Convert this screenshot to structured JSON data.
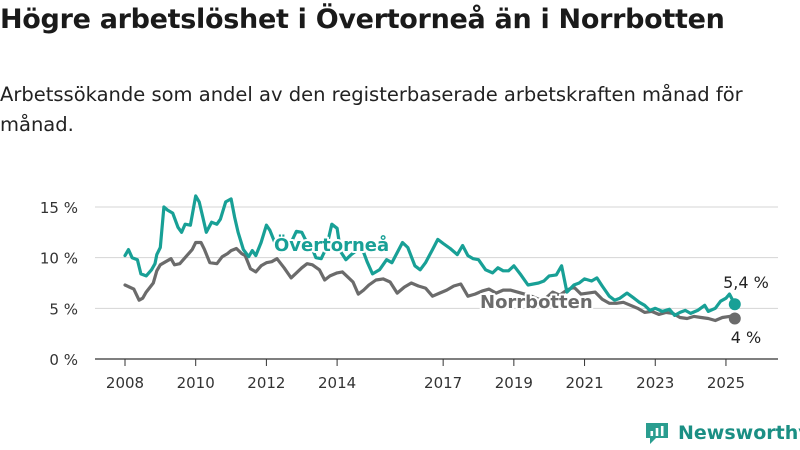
{
  "header": {
    "title": "Högre arbetslöshet i Övertorneå än i Norrbotten",
    "subtitle": "Arbetssökande som andel av den registerbaserade arbetskraften månad för månad."
  },
  "brand": {
    "name": "Newsworthy",
    "icon": "bar-chart-logo-icon",
    "color": "#1b8f84"
  },
  "chart_data": {
    "type": "line",
    "y_ticks": [
      "0 %",
      "5 %",
      "10 %",
      "15 %"
    ],
    "y_tick_values": [
      0,
      5,
      10,
      15
    ],
    "x_ticks": [
      "2008",
      "2010",
      "2012",
      "2014",
      "2017",
      "2019",
      "2021",
      "2023",
      "2025"
    ],
    "x_tick_values": [
      2008,
      2010,
      2012,
      2014,
      2017,
      2019,
      2021,
      2023,
      2025
    ],
    "ylim": [
      0,
      16.5
    ],
    "xlim": [
      2007.5,
      2025.8
    ],
    "grid": true,
    "series": [
      {
        "name": "Övertorneå",
        "color": "#18a096",
        "end_label": "5,4 %",
        "x": [
          2008.0,
          2008.1,
          2008.2,
          2008.35,
          2008.45,
          2008.6,
          2008.75,
          2008.85,
          2008.9,
          2009.0,
          2009.1,
          2009.2,
          2009.35,
          2009.5,
          2009.6,
          2009.7,
          2009.85,
          2010.0,
          2010.1,
          2010.2,
          2010.3,
          2010.45,
          2010.6,
          2010.7,
          2010.85,
          2011.0,
          2011.1,
          2011.2,
          2011.35,
          2011.5,
          2011.6,
          2011.7,
          2011.85,
          2012.0,
          2012.1,
          2012.25,
          2012.4,
          2012.55,
          2012.7,
          2012.85,
          2013.0,
          2013.1,
          2013.25,
          2013.4,
          2013.55,
          2013.7,
          2013.85,
          2014.0,
          2014.1,
          2014.25,
          2014.4,
          2014.55,
          2014.7,
          2014.85,
          2015.0,
          2015.2,
          2015.4,
          2015.55,
          2015.7,
          2015.85,
          2016.0,
          2016.2,
          2016.35,
          2016.5,
          2016.7,
          2016.85,
          2017.0,
          2017.2,
          2017.4,
          2017.55,
          2017.7,
          2017.85,
          2018.0,
          2018.2,
          2018.4,
          2018.55,
          2018.7,
          2018.85,
          2019.0,
          2019.2,
          2019.4,
          2019.55,
          2019.7,
          2019.85,
          2020.0,
          2020.2,
          2020.35,
          2020.5,
          2020.7,
          2020.85,
          2021.0,
          2021.2,
          2021.35,
          2021.5,
          2021.7,
          2021.85,
          2022.0,
          2022.2,
          2022.4,
          2022.55,
          2022.7,
          2022.85,
          2023.0,
          2023.2,
          2023.4,
          2023.55,
          2023.7,
          2023.85,
          2024.0,
          2024.2,
          2024.4,
          2024.5,
          2024.7,
          2024.85,
          2025.0,
          2025.1,
          2025.25
        ],
        "values": [
          10.2,
          10.8,
          10.0,
          9.8,
          8.4,
          8.2,
          8.8,
          9.4,
          10.3,
          11.0,
          15.0,
          14.7,
          14.4,
          13.0,
          12.5,
          13.3,
          13.2,
          16.1,
          15.5,
          14.0,
          12.5,
          13.5,
          13.3,
          13.8,
          15.5,
          15.8,
          14.0,
          12.5,
          10.8,
          10.1,
          10.7,
          10.2,
          11.5,
          13.2,
          12.7,
          11.4,
          10.6,
          10.8,
          11.5,
          12.6,
          12.5,
          11.8,
          11.3,
          10.0,
          9.9,
          11.0,
          13.3,
          12.9,
          10.6,
          9.8,
          10.3,
          10.7,
          11.0,
          9.6,
          8.4,
          8.8,
          9.8,
          9.5,
          10.5,
          11.5,
          11.0,
          9.2,
          8.8,
          9.5,
          10.8,
          11.8,
          11.4,
          10.9,
          10.3,
          11.2,
          10.2,
          9.9,
          9.8,
          8.8,
          8.5,
          9.0,
          8.7,
          8.7,
          9.2,
          8.3,
          7.3,
          7.4,
          7.5,
          7.7,
          8.2,
          8.3,
          9.2,
          6.6,
          7.3,
          7.5,
          7.9,
          7.7,
          8.0,
          7.2,
          6.2,
          5.8,
          6.0,
          6.5,
          6.0,
          5.6,
          5.3,
          4.8,
          5.0,
          4.7,
          4.9,
          4.3,
          4.6,
          4.8,
          4.5,
          4.8,
          5.3,
          4.7,
          5.0,
          5.7,
          6.0,
          6.4,
          5.4
        ]
      },
      {
        "name": "Norrbotten",
        "color": "#6b6b6b",
        "end_label": "4 %",
        "x": [
          2008.0,
          2008.25,
          2008.4,
          2008.5,
          2008.6,
          2008.8,
          2008.9,
          2009.0,
          2009.15,
          2009.3,
          2009.4,
          2009.55,
          2009.75,
          2009.9,
          2010.0,
          2010.15,
          2010.25,
          2010.4,
          2010.6,
          2010.75,
          2010.9,
          2011.0,
          2011.15,
          2011.3,
          2011.4,
          2011.55,
          2011.7,
          2011.85,
          2012.0,
          2012.15,
          2012.3,
          2012.5,
          2012.7,
          2012.85,
          2013.0,
          2013.15,
          2013.3,
          2013.5,
          2013.65,
          2013.8,
          2014.0,
          2014.15,
          2014.3,
          2014.45,
          2014.6,
          2014.75,
          2014.9,
          2015.1,
          2015.3,
          2015.5,
          2015.7,
          2015.9,
          2016.1,
          2016.3,
          2016.5,
          2016.7,
          2016.9,
          2017.1,
          2017.3,
          2017.5,
          2017.7,
          2017.9,
          2018.1,
          2018.3,
          2018.5,
          2018.7,
          2018.9,
          2019.1,
          2019.3,
          2019.5,
          2019.7,
          2019.9,
          2020.1,
          2020.3,
          2020.5,
          2020.7,
          2020.9,
          2021.1,
          2021.3,
          2021.5,
          2021.7,
          2021.9,
          2022.1,
          2022.3,
          2022.5,
          2022.7,
          2022.9,
          2023.1,
          2023.3,
          2023.5,
          2023.7,
          2023.9,
          2024.1,
          2024.3,
          2024.5,
          2024.7,
          2024.9,
          2025.1,
          2025.25
        ],
        "values": [
          7.3,
          6.9,
          5.8,
          6.0,
          6.6,
          7.5,
          8.7,
          9.3,
          9.6,
          9.9,
          9.3,
          9.4,
          10.2,
          10.8,
          11.5,
          11.5,
          10.8,
          9.5,
          9.4,
          10.1,
          10.4,
          10.7,
          10.9,
          10.4,
          10.2,
          8.9,
          8.6,
          9.2,
          9.5,
          9.6,
          9.9,
          9.0,
          8.0,
          8.5,
          9.0,
          9.4,
          9.3,
          8.8,
          7.8,
          8.2,
          8.5,
          8.6,
          8.1,
          7.6,
          6.4,
          6.8,
          7.3,
          7.8,
          7.9,
          7.6,
          6.5,
          7.1,
          7.5,
          7.2,
          7.0,
          6.2,
          6.5,
          6.8,
          7.2,
          7.4,
          6.2,
          6.4,
          6.7,
          6.9,
          6.5,
          6.8,
          6.8,
          6.6,
          6.4,
          6.2,
          5.9,
          6.0,
          6.6,
          6.3,
          6.8,
          7.1,
          6.4,
          6.5,
          6.6,
          5.9,
          5.5,
          5.5,
          5.6,
          5.3,
          5.0,
          4.6,
          4.7,
          4.4,
          4.6,
          4.5,
          4.1,
          4.0,
          4.2,
          4.1,
          4.0,
          3.8,
          4.1,
          4.2,
          4.0
        ]
      }
    ]
  }
}
